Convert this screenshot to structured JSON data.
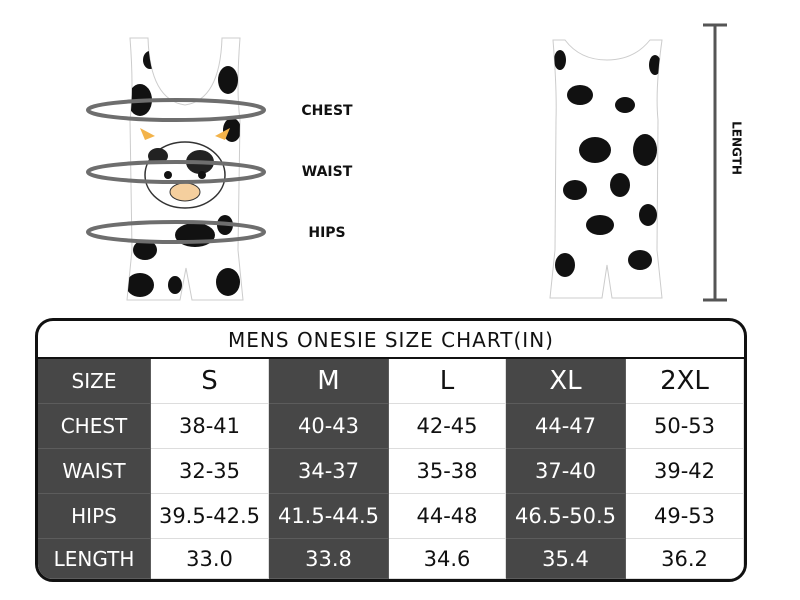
{
  "labels": {
    "chest": "CHEST",
    "waist": "WAIST",
    "hips": "HIPS",
    "length": "LENGTH"
  },
  "table": {
    "title": "MENS ONESIE SIZE CHART(IN)",
    "header": [
      "SIZE",
      "S",
      "M",
      "L",
      "XL",
      "2XL"
    ],
    "rows": [
      [
        "CHEST",
        "38-41",
        "40-43",
        "42-45",
        "44-47",
        "50-53"
      ],
      [
        "WAIST",
        "32-35",
        "34-37",
        "35-38",
        "37-40",
        "39-42"
      ],
      [
        "HIPS",
        "39.5-42.5",
        "41.5-44.5",
        "44-48",
        "46.5-50.5",
        "49-53"
      ],
      [
        "LENGTH",
        "33.0",
        "33.8",
        "34.6",
        "35.4",
        "36.2"
      ]
    ]
  }
}
